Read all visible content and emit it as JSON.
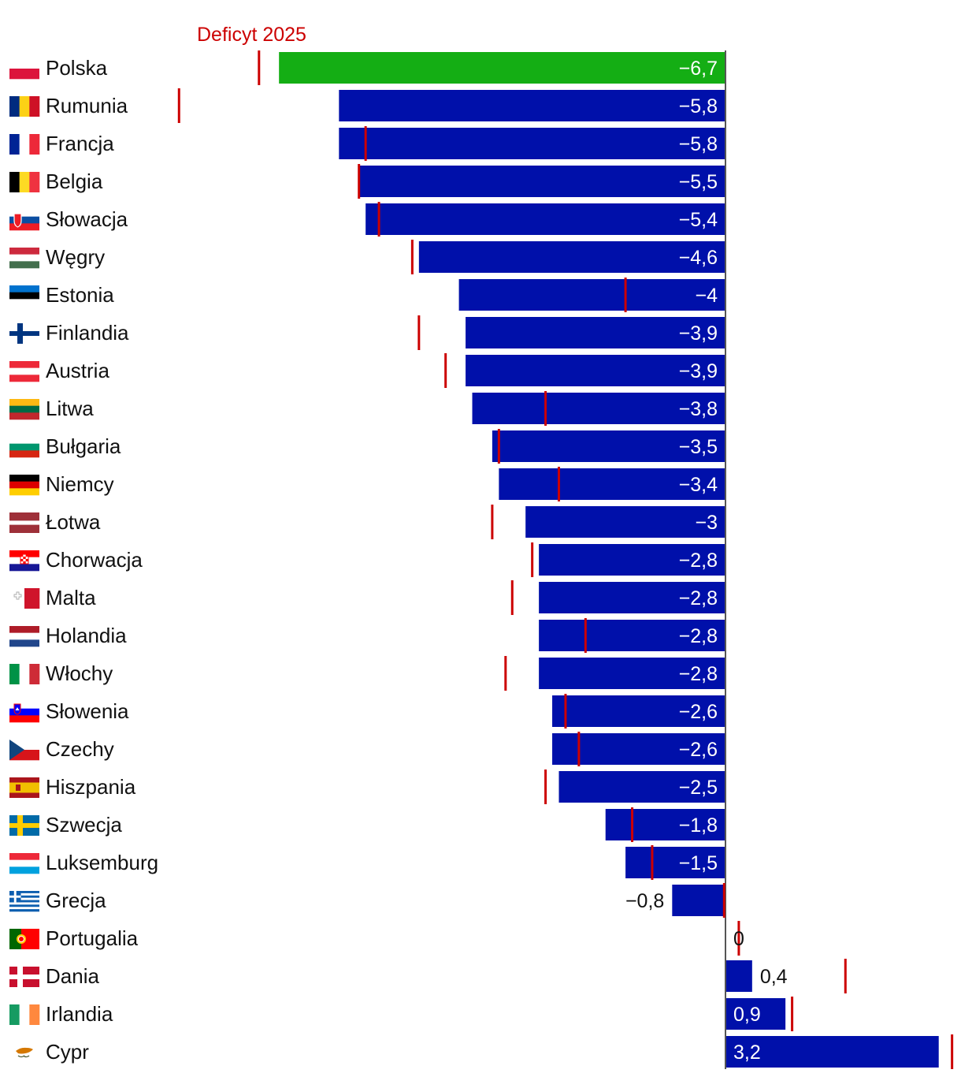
{
  "chart_data": {
    "type": "bar",
    "orientation": "horizontal",
    "title": "",
    "marker_series_name": "Deficyt 2025",
    "xlabel": "",
    "ylabel": "",
    "xlim": [
      -10.5,
      3.4
    ],
    "grid": false,
    "highlight_category": "Polska",
    "categories": [
      "Polska",
      "Rumunia",
      "Francja",
      "Belgia",
      "Słowacja",
      "Węgry",
      "Estonia",
      "Finlandia",
      "Austria",
      "Litwa",
      "Bułgaria",
      "Niemcy",
      "Łotwa",
      "Chorwacja",
      "Malta",
      "Holandia",
      "Włochy",
      "Słowenia",
      "Czechy",
      "Hiszpania",
      "Szwecja",
      "Luksemburg",
      "Grecja",
      "Portugalia",
      "Dania",
      "Irlandia",
      "Cypr"
    ],
    "values": [
      -6.7,
      -5.8,
      -5.8,
      -5.5,
      -5.4,
      -4.6,
      -4,
      -3.9,
      -3.9,
      -3.8,
      -3.5,
      -3.4,
      -3,
      -2.8,
      -2.8,
      -2.8,
      -2.8,
      -2.6,
      -2.6,
      -2.5,
      -1.8,
      -1.5,
      -0.8,
      0,
      0.4,
      0.9,
      3.2
    ],
    "value_labels": [
      "−6,7",
      "−5,8",
      "−5,8",
      "−5,5",
      "−5,4",
      "−4,6",
      "−4",
      "−3,9",
      "−3,9",
      "−3,8",
      "−3,5",
      "−3,4",
      "−3",
      "−2,8",
      "−2,8",
      "−2,8",
      "−2,8",
      "−2,6",
      "−2,6",
      "−2,5",
      "−1,8",
      "−1,5",
      "−0,8",
      "0",
      "0,4",
      "0,9",
      "3,2"
    ],
    "deficit_2025": [
      -7.0,
      -8.2,
      -5.4,
      -5.5,
      -5.2,
      -4.7,
      -1.5,
      -4.6,
      -4.2,
      -2.7,
      -3.4,
      -2.5,
      -3.5,
      -2.9,
      -3.2,
      -2.1,
      -3.3,
      -2.4,
      -2.2,
      -2.7,
      -1.4,
      -1.1,
      -0.02,
      0.2,
      1.8,
      1.0,
      3.4
    ],
    "colors": {
      "bar": "#0010aa",
      "highlight": "#14ae14",
      "marker": "#cc0000",
      "axis": "#555555",
      "label_inside": "#ffffff",
      "label_outside": "#111111"
    }
  }
}
